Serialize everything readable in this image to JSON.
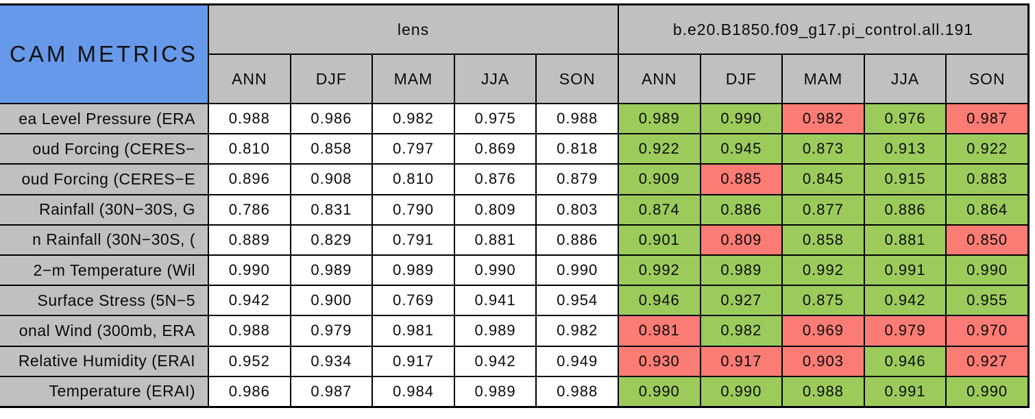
{
  "colors": {
    "title_blue": "#6699EA",
    "header_gray": "#C0C0C0",
    "pass_green": "#9CCB5C",
    "fail_red": "#FA7C74",
    "grid_line": "#000000"
  },
  "chart_data": {
    "type": "table",
    "title": "CAM METRICS",
    "groups": [
      "lens",
      "b.e20.B1850.f09_g17.pi_control.all.191"
    ],
    "seasons": [
      "ANN",
      "DJF",
      "MAM",
      "JJA",
      "SON"
    ],
    "legend_note": "case cells shaded green or red",
    "rows": [
      {
        "label": "ea Level Pressure (ERA",
        "lens": [
          "0.988",
          "0.986",
          "0.982",
          "0.975",
          "0.988"
        ],
        "case": [
          "0.989",
          "0.990",
          "0.982",
          "0.976",
          "0.987"
        ],
        "case_colors": [
          "green",
          "green",
          "red",
          "green",
          "red"
        ]
      },
      {
        "label": "oud Forcing (CERES−",
        "lens": [
          "0.810",
          "0.858",
          "0.797",
          "0.869",
          "0.818"
        ],
        "case": [
          "0.922",
          "0.945",
          "0.873",
          "0.913",
          "0.922"
        ],
        "case_colors": [
          "green",
          "green",
          "green",
          "green",
          "green"
        ]
      },
      {
        "label": "oud Forcing (CERES−E",
        "lens": [
          "0.896",
          "0.908",
          "0.810",
          "0.876",
          "0.879"
        ],
        "case": [
          "0.909",
          "0.885",
          "0.845",
          "0.915",
          "0.883"
        ],
        "case_colors": [
          "green",
          "red",
          "green",
          "green",
          "green"
        ]
      },
      {
        "label": "Rainfall (30N−30S, G",
        "lens": [
          "0.786",
          "0.831",
          "0.790",
          "0.809",
          "0.803"
        ],
        "case": [
          "0.874",
          "0.886",
          "0.877",
          "0.886",
          "0.864"
        ],
        "case_colors": [
          "green",
          "green",
          "green",
          "green",
          "green"
        ]
      },
      {
        "label": "n Rainfall (30N−30S, (",
        "lens": [
          "0.889",
          "0.829",
          "0.791",
          "0.881",
          "0.886"
        ],
        "case": [
          "0.901",
          "0.809",
          "0.858",
          "0.881",
          "0.850"
        ],
        "case_colors": [
          "green",
          "red",
          "green",
          "green",
          "red"
        ]
      },
      {
        "label": "2−m Temperature (Wil",
        "lens": [
          "0.990",
          "0.989",
          "0.989",
          "0.990",
          "0.990"
        ],
        "case": [
          "0.992",
          "0.989",
          "0.992",
          "0.991",
          "0.990"
        ],
        "case_colors": [
          "green",
          "green",
          "green",
          "green",
          "green"
        ]
      },
      {
        "label": "Surface Stress (5N−5",
        "lens": [
          "0.942",
          "0.900",
          "0.769",
          "0.941",
          "0.954"
        ],
        "case": [
          "0.946",
          "0.927",
          "0.875",
          "0.942",
          "0.955"
        ],
        "case_colors": [
          "green",
          "green",
          "green",
          "green",
          "green"
        ]
      },
      {
        "label": "onal Wind (300mb, ERA",
        "lens": [
          "0.988",
          "0.979",
          "0.981",
          "0.989",
          "0.982"
        ],
        "case": [
          "0.981",
          "0.982",
          "0.969",
          "0.979",
          "0.970"
        ],
        "case_colors": [
          "red",
          "green",
          "red",
          "red",
          "red"
        ]
      },
      {
        "label": "Relative Humidity (ERAI",
        "lens": [
          "0.952",
          "0.934",
          "0.917",
          "0.942",
          "0.949"
        ],
        "case": [
          "0.930",
          "0.917",
          "0.903",
          "0.946",
          "0.927"
        ],
        "case_colors": [
          "red",
          "red",
          "red",
          "green",
          "red"
        ]
      },
      {
        "label": "Temperature (ERAI)",
        "lens": [
          "0.986",
          "0.987",
          "0.984",
          "0.989",
          "0.988"
        ],
        "case": [
          "0.990",
          "0.990",
          "0.988",
          "0.991",
          "0.990"
        ],
        "case_colors": [
          "green",
          "green",
          "green",
          "green",
          "green"
        ]
      }
    ]
  }
}
